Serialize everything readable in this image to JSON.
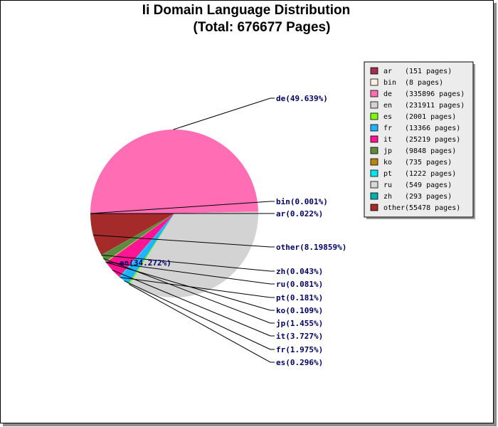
{
  "header": {
    "title": "Ii Domain Language Distribution",
    "subtitle": "(Total: 676677 Pages)"
  },
  "chart_data": {
    "type": "pie",
    "title": "Ii Domain Language Distribution",
    "subtitle": "(Total: 676677 Pages)",
    "total_pages": 676677,
    "slices": [
      {
        "name": "ar",
        "pages": 151,
        "percent": 0.022,
        "label": "ar(0.022%)",
        "legend": "(151 pages)",
        "color": "#a03050"
      },
      {
        "name": "bin",
        "pages": 8,
        "percent": 0.001,
        "label": "bin(0.001%)",
        "legend": "(8 pages)",
        "color": "#fff0e6"
      },
      {
        "name": "de",
        "pages": 335896,
        "percent": 49.639,
        "label": "de(49.639%)",
        "legend": "(335896 pages)",
        "color": "#ff6eb4"
      },
      {
        "name": "en",
        "pages": 231911,
        "percent": 34.272,
        "label": "en(34.272%)",
        "legend": "(231911 pages)",
        "color": "#d3d3d3"
      },
      {
        "name": "es",
        "pages": 2001,
        "percent": 0.296,
        "label": "es(0.296%)",
        "legend": "(2001 pages)",
        "color": "#7cfc00"
      },
      {
        "name": "fr",
        "pages": 13366,
        "percent": 1.975,
        "label": "fr(1.975%)",
        "legend": "(13366 pages)",
        "color": "#1eb4ff"
      },
      {
        "name": "it",
        "pages": 25219,
        "percent": 3.727,
        "label": "it(3.727%)",
        "legend": "(25219 pages)",
        "color": "#ff1493"
      },
      {
        "name": "jp",
        "pages": 9848,
        "percent": 1.455,
        "label": "jp(1.455%)",
        "legend": "(9848 pages)",
        "color": "#5a8c3c"
      },
      {
        "name": "ko",
        "pages": 735,
        "percent": 0.109,
        "label": "ko(0.109%)",
        "legend": "(735 pages)",
        "color": "#b8860b"
      },
      {
        "name": "pt",
        "pages": 1222,
        "percent": 0.181,
        "label": "pt(0.181%)",
        "legend": "(1222 pages)",
        "color": "#00e5ee"
      },
      {
        "name": "ru",
        "pages": 549,
        "percent": 0.081,
        "label": "ru(0.081%)",
        "legend": "(549 pages)",
        "color": "#d8d8d8"
      },
      {
        "name": "zh",
        "pages": 293,
        "percent": 0.043,
        "label": "zh(0.043%)",
        "legend": "(293 pages)",
        "color": "#00b0b0"
      },
      {
        "name": "other",
        "pages": 55478,
        "percent": 8.19859,
        "label": "other(8.19859%)",
        "legend": "(55478 pages)",
        "color": "#a52a2a"
      }
    ],
    "legend_placement": "top-right"
  }
}
